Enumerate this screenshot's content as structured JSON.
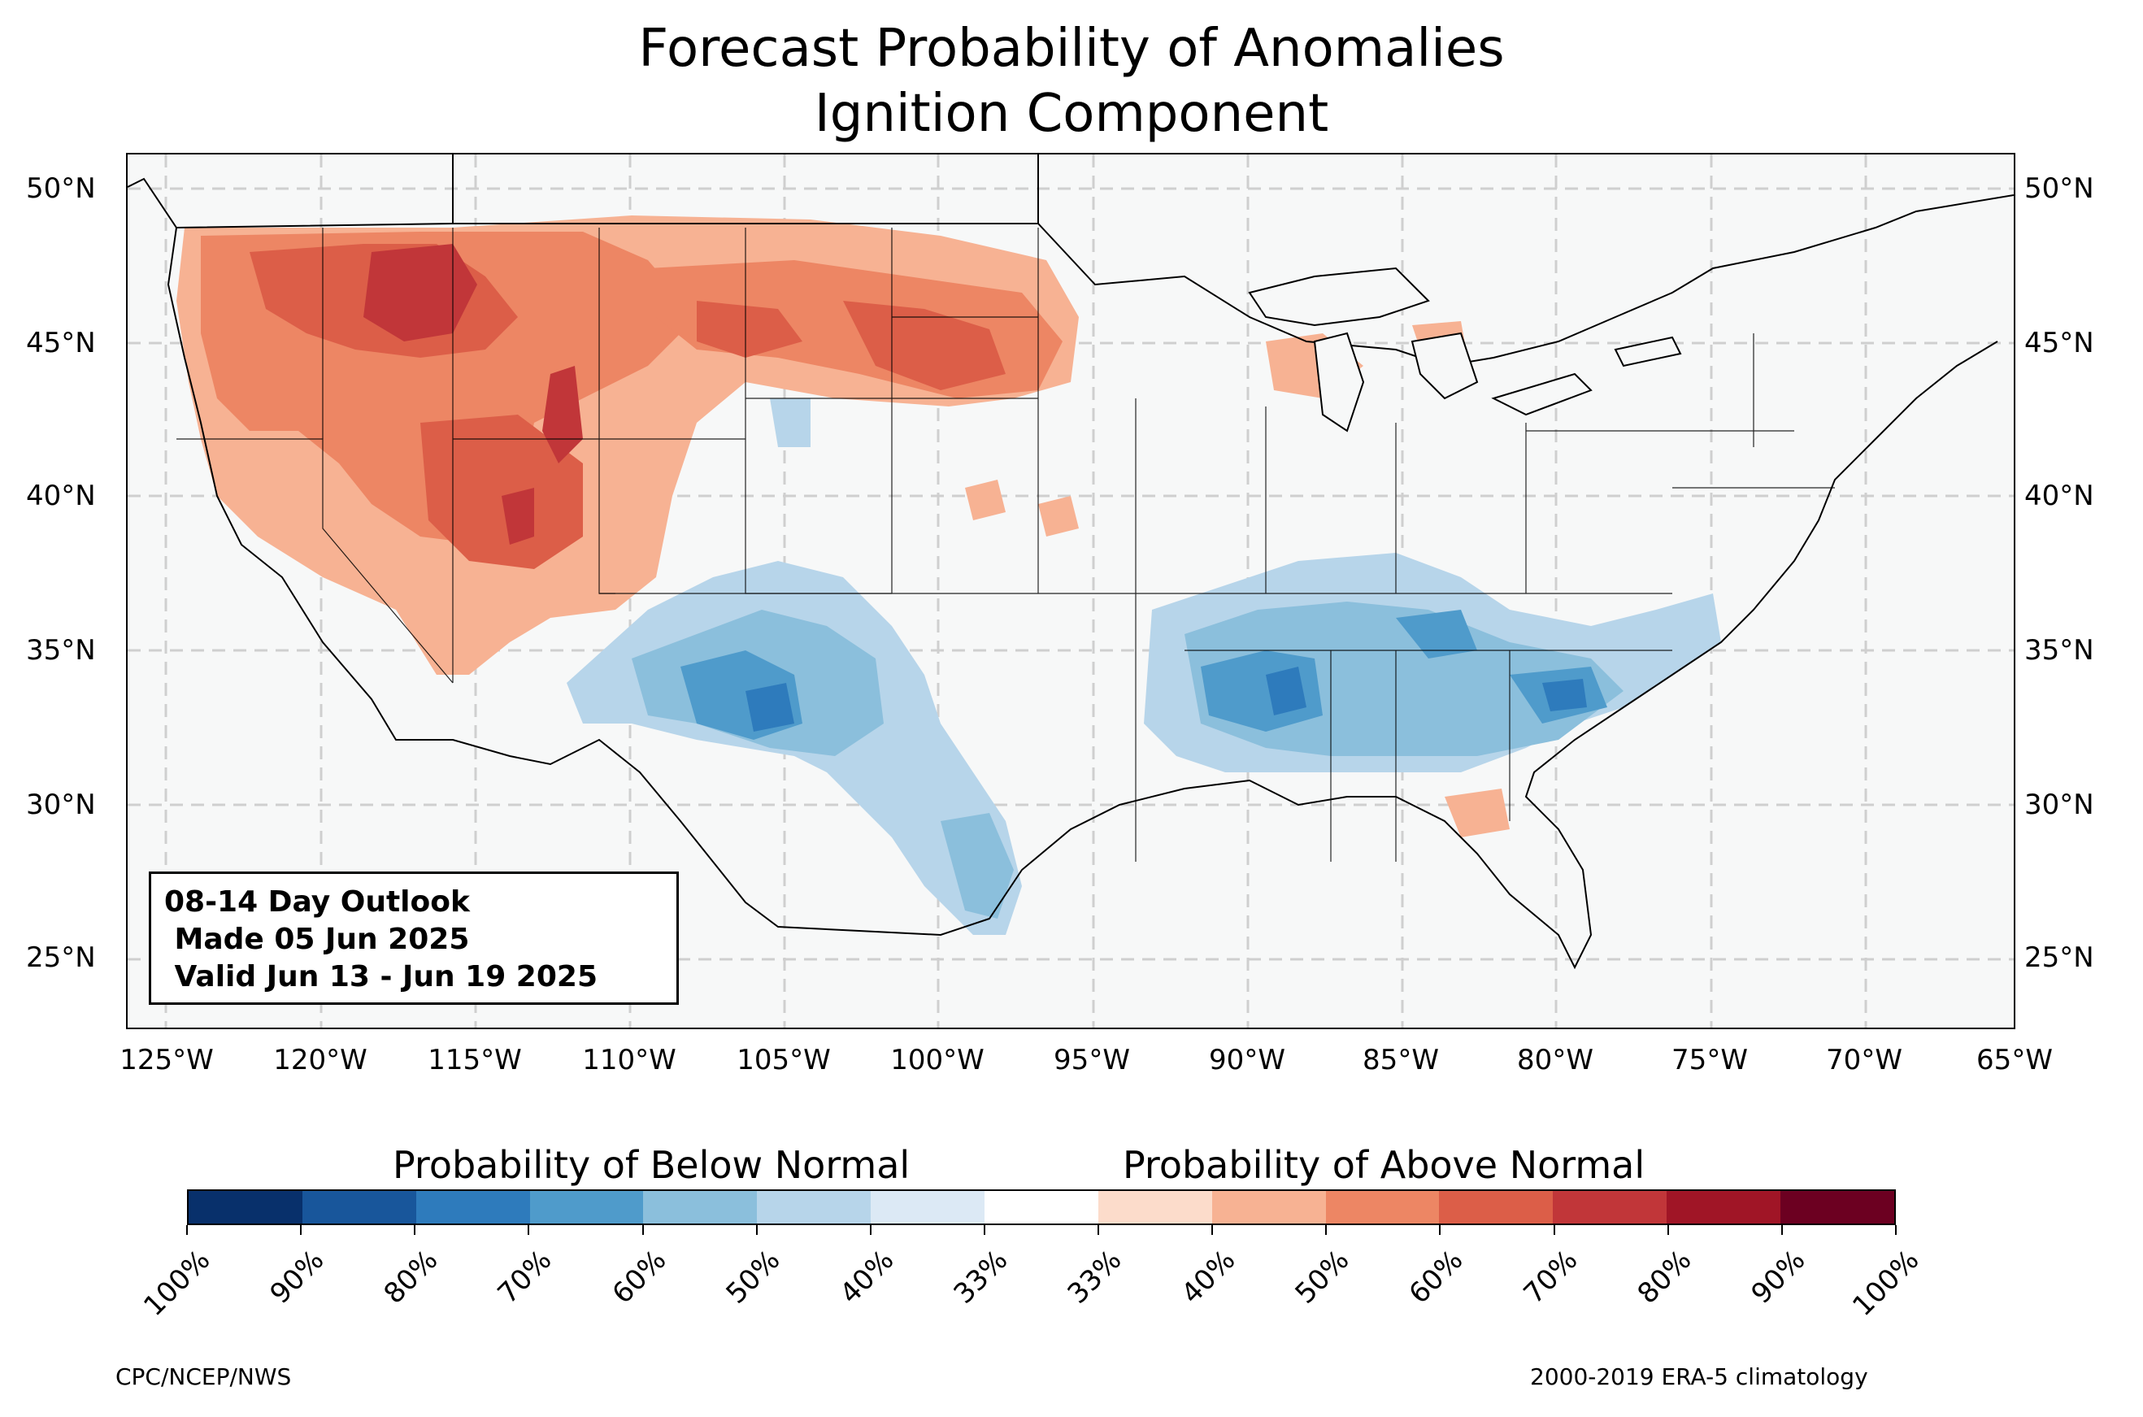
{
  "title_line1": "Forecast Probability of Anomalies",
  "title_line2": "Ignition Component",
  "lat_labels": [
    "50°N",
    "45°N",
    "40°N",
    "35°N",
    "30°N",
    "25°N"
  ],
  "lon_labels": [
    "125°W",
    "120°W",
    "115°W",
    "110°W",
    "105°W",
    "100°W",
    "95°W",
    "90°W",
    "85°W",
    "80°W",
    "75°W",
    "70°W",
    "65°W"
  ],
  "info_box": {
    "line1": "08-14 Day Outlook",
    "line2": " Made 05 Jun 2025",
    "line3": " Valid Jun 13 - Jun 19 2025"
  },
  "colorbar": {
    "below_label": "Probability of Below Normal",
    "above_label": "Probability of Above Normal",
    "tick_labels": [
      "100%",
      "90%",
      "80%",
      "70%",
      "60%",
      "50%",
      "40%",
      "33%",
      "33%",
      "40%",
      "50%",
      "60%",
      "70%",
      "80%",
      "90%",
      "100%"
    ],
    "colors": [
      "#08306b",
      "#18569b",
      "#2e7bbc",
      "#4f9bcb",
      "#8bbfdc",
      "#b7d5ea",
      "#dce9f5",
      "#ffffff",
      "#fcdccb",
      "#f7b293",
      "#ed8664",
      "#dc5e48",
      "#c13639",
      "#a01526",
      "#6c0021"
    ]
  },
  "map_colors": {
    "land": "#f7f8f8",
    "above_40": "#f7b293",
    "above_50": "#ed8664",
    "above_60": "#dc5e48",
    "above_70": "#c13639",
    "below_40": "#b7d5ea",
    "below_50": "#8bbfdc",
    "below_60": "#4f9bcb",
    "below_70": "#2e7bbc"
  },
  "footer_left": "CPC/NCEP/NWS",
  "footer_right": "2000-2019 ERA-5 climatology"
}
